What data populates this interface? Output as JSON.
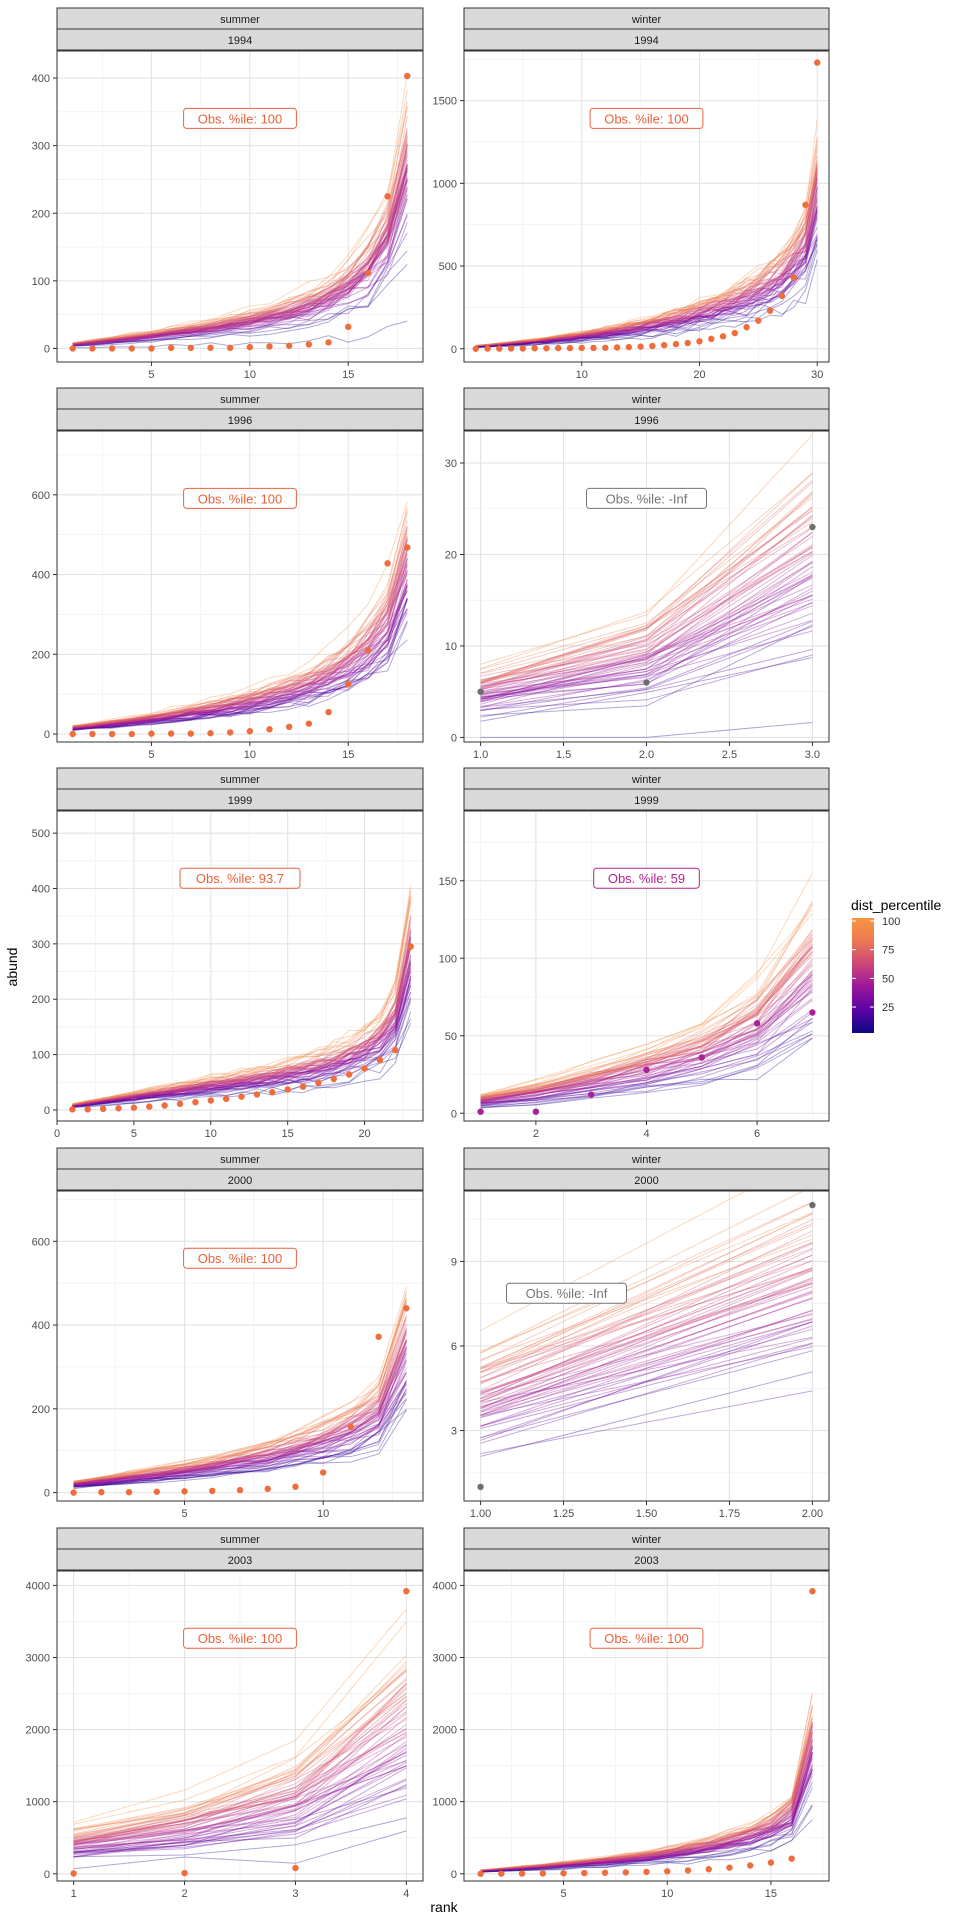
{
  "figure": {
    "xlabel": "rank",
    "ylabel": "abund",
    "legend": {
      "title": "dist_percentile",
      "ticks": [
        100,
        75,
        50,
        25
      ],
      "colors": [
        "#0d0887",
        "#5b02a3",
        "#9a179b",
        "#cb4678",
        "#eb7852",
        "#f89540"
      ]
    }
  },
  "chart_data": [
    {
      "type": "line",
      "panel": 1,
      "season": "summer",
      "year": "1994",
      "annotation": "Obs. %ile: 100",
      "annotation_color": "#e8613c",
      "obs_color": "#ef6c3c",
      "xlim": [
        0.2,
        18.8
      ],
      "ylim": [
        -20,
        440
      ],
      "xticks": [
        5,
        10,
        15
      ],
      "yticks": [
        0,
        100,
        200,
        300,
        400
      ],
      "xgrid_minor": true,
      "x": [
        1,
        2,
        3,
        4,
        5,
        6,
        7,
        8,
        9,
        10,
        11,
        12,
        13,
        14,
        15,
        16,
        17,
        18
      ],
      "observed": [
        0,
        0,
        0,
        0,
        0,
        1,
        1,
        1,
        1,
        2,
        3,
        4,
        6,
        9,
        32,
        112,
        225,
        403
      ],
      "simulated_band": {
        "center": [
          6,
          9,
          12,
          15,
          18,
          22,
          26,
          30,
          35,
          40,
          46,
          53,
          62,
          74,
          92,
          118,
          160,
          265
        ],
        "spread": 0.65
      }
    },
    {
      "type": "line",
      "panel": 2,
      "season": "winter",
      "year": "1994",
      "annotation": "Obs. %ile: 100",
      "annotation_color": "#e8613c",
      "obs_color": "#ef6c3c",
      "xlim": [
        0,
        31
      ],
      "ylim": [
        -80,
        1800
      ],
      "xticks": [
        10,
        20,
        30
      ],
      "yticks": [
        0,
        500,
        1000,
        1500
      ],
      "xgrid_minor": true,
      "x": [
        1,
        2,
        3,
        4,
        5,
        6,
        7,
        8,
        9,
        10,
        11,
        12,
        13,
        14,
        15,
        16,
        17,
        18,
        19,
        20,
        21,
        22,
        23,
        24,
        25,
        26,
        27,
        28,
        29,
        30
      ],
      "observed": [
        0,
        1,
        1,
        2,
        2,
        3,
        3,
        4,
        4,
        5,
        5,
        6,
        8,
        10,
        13,
        17,
        22,
        28,
        35,
        45,
        60,
        75,
        95,
        130,
        170,
        230,
        320,
        430,
        870,
        1730
      ],
      "simulated_band": {
        "center": [
          15,
          20,
          26,
          32,
          38,
          45,
          52,
          60,
          68,
          77,
          86,
          96,
          107,
          119,
          132,
          146,
          161,
          177,
          195,
          214,
          235,
          258,
          285,
          315,
          350,
          392,
          445,
          515,
          620,
          950
        ],
        "spread": 0.55
      }
    },
    {
      "type": "line",
      "panel": 3,
      "season": "summer",
      "year": "1996",
      "annotation": "Obs. %ile: 100",
      "annotation_color": "#e8613c",
      "obs_color": "#ef6c3c",
      "xlim": [
        0.2,
        18.8
      ],
      "ylim": [
        -20,
        760
      ],
      "xticks": [
        5,
        10,
        15
      ],
      "yticks": [
        0,
        200,
        400,
        600
      ],
      "xgrid_minor": true,
      "x": [
        1,
        2,
        3,
        4,
        5,
        6,
        7,
        8,
        9,
        10,
        11,
        12,
        13,
        14,
        15,
        16,
        17,
        18
      ],
      "observed": [
        0,
        0,
        0,
        0,
        1,
        1,
        1,
        2,
        4,
        7,
        12,
        18,
        26,
        55,
        125,
        210,
        428,
        468
      ],
      "simulated_band": {
        "center": [
          15,
          20,
          26,
          32,
          38,
          45,
          53,
          61,
          70,
          80,
          92,
          106,
          123,
          145,
          175,
          215,
          275,
          420
        ],
        "spread": 0.6
      }
    },
    {
      "type": "line",
      "panel": 4,
      "season": "winter",
      "year": "1996",
      "annotation": "Obs. %ile: -Inf",
      "annotation_color": "#757575",
      "obs_color": "#6e6e6e",
      "xlim": [
        0.9,
        3.1
      ],
      "ylim": [
        -0.5,
        33.5
      ],
      "xticks": [
        1.0,
        1.5,
        2.0,
        2.5,
        3.0
      ],
      "yticks": [
        0,
        10,
        20,
        30
      ],
      "xgrid_minor": false,
      "x": [
        1,
        2,
        3
      ],
      "observed": [
        5,
        6,
        23
      ],
      "simulated_band": {
        "center": [
          5,
          9,
          20
        ],
        "spread": 0.9
      }
    },
    {
      "type": "line",
      "panel": 5,
      "season": "summer",
      "year": "1999",
      "annotation": "Obs. %ile: 93.7",
      "annotation_color": "#e8613c",
      "obs_color": "#ef6c3c",
      "xlim": [
        0,
        23.8
      ],
      "ylim": [
        -20,
        540
      ],
      "xticks": [
        0,
        5,
        10,
        15,
        20
      ],
      "yticks": [
        0,
        100,
        200,
        300,
        400,
        500
      ],
      "xgrid_minor": true,
      "x": [
        1,
        2,
        3,
        4,
        5,
        6,
        7,
        8,
        9,
        10,
        11,
        12,
        13,
        14,
        15,
        16,
        17,
        18,
        19,
        20,
        21,
        22,
        23
      ],
      "observed": [
        1,
        1,
        2,
        3,
        4,
        6,
        8,
        11,
        14,
        17,
        20,
        24,
        28,
        32,
        37,
        42,
        49,
        56,
        64,
        75,
        90,
        108,
        295
      ],
      "simulated_band": {
        "center": [
          8,
          12,
          16,
          20,
          24,
          28,
          32,
          36,
          40,
          44,
          48,
          52,
          56,
          61,
          66,
          72,
          79,
          87,
          97,
          110,
          130,
          165,
          290
        ],
        "spread": 0.55
      }
    },
    {
      "type": "line",
      "panel": 6,
      "season": "winter",
      "year": "1999",
      "annotation": "Obs. %ile: 59",
      "annotation_color": "#b5208d",
      "obs_color": "#a82296",
      "xlim": [
        0.7,
        7.3
      ],
      "ylim": [
        -5,
        195
      ],
      "xticks": [
        2,
        4,
        6
      ],
      "yticks": [
        0,
        50,
        100,
        150
      ],
      "xgrid_minor": true,
      "x": [
        1,
        2,
        3,
        4,
        5,
        6,
        7
      ],
      "observed": [
        1,
        1,
        12,
        28,
        36,
        58,
        65
      ],
      "simulated_band": {
        "center": [
          8,
          13,
          20,
          28,
          38,
          55,
          90
        ],
        "spread": 0.75
      }
    },
    {
      "type": "line",
      "panel": 7,
      "season": "summer",
      "year": "2000",
      "annotation": "Obs. %ile: 100",
      "annotation_color": "#e8613c",
      "obs_color": "#ef6c3c",
      "xlim": [
        0.4,
        13.6
      ],
      "ylim": [
        -20,
        720
      ],
      "xticks": [
        5,
        10
      ],
      "yticks": [
        0,
        200,
        400,
        600
      ],
      "xgrid_minor": true,
      "x": [
        1,
        2,
        3,
        4,
        5,
        6,
        7,
        8,
        9,
        10,
        11,
        12,
        13
      ],
      "observed": [
        0,
        1,
        1,
        2,
        3,
        4,
        6,
        9,
        14,
        48,
        157,
        372,
        440
      ],
      "simulated_band": {
        "center": [
          20,
          28,
          36,
          44,
          53,
          63,
          75,
          89,
          105,
          125,
          152,
          190,
          350
        ],
        "spread": 0.6
      }
    },
    {
      "type": "line",
      "panel": 8,
      "season": "winter",
      "year": "2000",
      "annotation": "Obs. %ile: -Inf",
      "annotation_color": "#757575",
      "obs_color": "#6e6e6e",
      "xlim": [
        0.95,
        2.05
      ],
      "ylim": [
        0.5,
        11.5
      ],
      "xticks": [
        1.0,
        1.25,
        1.5,
        1.75,
        2.0
      ],
      "xtick_labels": [
        "1.00",
        "1.25",
        "1.50",
        "1.75",
        "2.00"
      ],
      "yticks": [
        3,
        6,
        9
      ],
      "xgrid_minor": false,
      "x": [
        1,
        2
      ],
      "observed": [
        1,
        11
      ],
      "simulated_band": {
        "center": [
          4,
          8
        ],
        "spread": 0.7
      }
    },
    {
      "type": "line",
      "panel": 9,
      "season": "summer",
      "year": "2003",
      "annotation": "Obs. %ile: 100",
      "annotation_color": "#e8613c",
      "obs_color": "#ef6c3c",
      "xlim": [
        0.85,
        4.15
      ],
      "ylim": [
        -100,
        4200
      ],
      "xticks": [
        1,
        2,
        3,
        4
      ],
      "yticks": [
        0,
        1000,
        2000,
        3000,
        4000
      ],
      "xgrid_minor": true,
      "x": [
        1,
        2,
        3,
        4
      ],
      "observed": [
        5,
        10,
        80,
        3920
      ],
      "simulated_band": {
        "center": [
          400,
          600,
          1000,
          2000
        ],
        "spread": 0.9
      }
    },
    {
      "type": "line",
      "panel": 10,
      "season": "winter",
      "year": "2003",
      "annotation": "Obs. %ile: 100",
      "annotation_color": "#e8613c",
      "obs_color": "#ef6c3c",
      "xlim": [
        0.2,
        17.8
      ],
      "ylim": [
        -100,
        4200
      ],
      "xticks": [
        5,
        10,
        15
      ],
      "yticks": [
        0,
        1000,
        2000,
        3000,
        4000
      ],
      "xgrid_minor": true,
      "x": [
        1,
        2,
        3,
        4,
        5,
        6,
        7,
        8,
        9,
        10,
        11,
        12,
        13,
        14,
        15,
        16,
        17
      ],
      "observed": [
        1,
        2,
        3,
        5,
        7,
        10,
        14,
        19,
        26,
        35,
        47,
        63,
        85,
        115,
        155,
        210,
        3920
      ],
      "simulated_band": {
        "center": [
          40,
          60,
          80,
          100,
          125,
          150,
          175,
          205,
          240,
          280,
          325,
          380,
          445,
          530,
          640,
          820,
          1800
        ],
        "spread": 0.55
      }
    }
  ]
}
